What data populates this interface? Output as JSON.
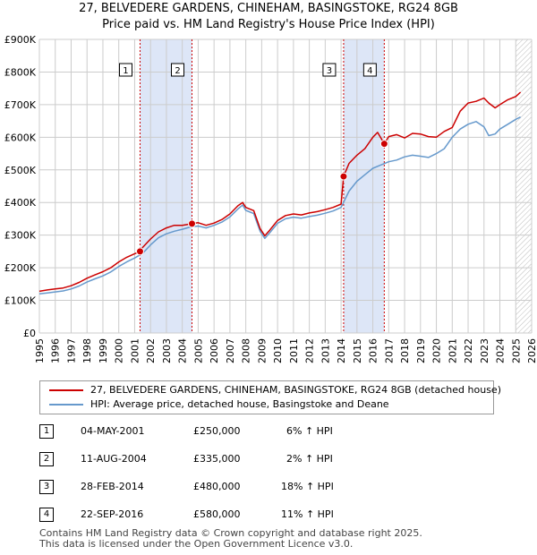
{
  "header": {
    "title_line1": "27, BELVEDERE GARDENS, CHINEHAM, BASINGSTOKE, RG24 8GB",
    "title_line2": "Price paid vs. HM Land Registry's House Price Index (HPI)"
  },
  "colors": {
    "property": "#cc0000",
    "hpi": "#6699cc",
    "shade": "#dde6f7",
    "grid": "#cccccc",
    "marker_line": "#cc0000"
  },
  "chart_data": {
    "type": "line",
    "title": "27, BELVEDERE GARDENS, CHINEHAM, BASINGSTOKE, RG24 8GB — Price paid vs. HM Land Registry's House Price Index (HPI)",
    "xlabel": "",
    "ylabel": "",
    "xlim": [
      1995,
      2026
    ],
    "ylim": [
      0,
      900000
    ],
    "y_ticks": [
      0,
      100000,
      200000,
      300000,
      400000,
      500000,
      600000,
      700000,
      800000,
      900000
    ],
    "y_tick_labels": [
      "£0",
      "£100K",
      "£200K",
      "£300K",
      "£400K",
      "£500K",
      "£600K",
      "£700K",
      "£800K",
      "£900K"
    ],
    "x_ticks": [
      1995,
      1996,
      1997,
      1998,
      1999,
      2000,
      2001,
      2002,
      2003,
      2004,
      2005,
      2006,
      2007,
      2008,
      2009,
      2010,
      2011,
      2012,
      2013,
      2014,
      2015,
      2016,
      2017,
      2018,
      2019,
      2020,
      2021,
      2022,
      2023,
      2024,
      2025,
      2026
    ],
    "x_tick_labels": [
      "1995",
      "1996",
      "1997",
      "1998",
      "1999",
      "2000",
      "2001",
      "2002",
      "2003",
      "2004",
      "2005",
      "2006",
      "2007",
      "2008",
      "2009",
      "2010",
      "2011",
      "2012",
      "2013",
      "2014",
      "2015",
      "2016",
      "2017",
      "2018",
      "2019",
      "2020",
      "2021",
      "2022",
      "2023",
      "2024",
      "2025",
      "2026"
    ],
    "shaded_ranges": [
      [
        2001.34,
        2004.61
      ],
      [
        2014.16,
        2016.72
      ]
    ],
    "hatched_from": 2025.0,
    "series": [
      {
        "name": "27, BELVEDERE GARDENS, CHINEHAM, BASINGSTOKE, RG24 8GB (detached house)",
        "color": "#cc0000",
        "x": [
          1995,
          1995.5,
          1996,
          1996.5,
          1997,
          1997.5,
          1998,
          1998.5,
          1999,
          1999.5,
          2000,
          2000.5,
          2001,
          2001.34,
          2001.5,
          2002,
          2002.5,
          2003,
          2003.5,
          2004,
          2004.61,
          2005,
          2005.5,
          2006,
          2006.5,
          2007,
          2007.5,
          2007.8,
          2008,
          2008.5,
          2008.9,
          2009.2,
          2009.5,
          2010,
          2010.5,
          2011,
          2011.5,
          2012,
          2012.5,
          2013,
          2013.5,
          2014,
          2014.16,
          2014.5,
          2015,
          2015.5,
          2016,
          2016.3,
          2016.72,
          2017,
          2017.5,
          2018,
          2018.5,
          2019,
          2019.5,
          2020,
          2020.5,
          2021,
          2021.5,
          2022,
          2022.5,
          2023,
          2023.3,
          2023.7,
          2024,
          2024.5,
          2025,
          2025.3
        ],
        "values": [
          128000,
          132000,
          135000,
          138000,
          145000,
          155000,
          168000,
          178000,
          188000,
          200000,
          218000,
          232000,
          243000,
          250000,
          262000,
          288000,
          310000,
          322000,
          330000,
          330000,
          335000,
          338000,
          330000,
          337000,
          348000,
          365000,
          390000,
          400000,
          385000,
          375000,
          320000,
          298000,
          315000,
          345000,
          360000,
          365000,
          362000,
          368000,
          372000,
          378000,
          385000,
          395000,
          480000,
          520000,
          545000,
          565000,
          600000,
          615000,
          580000,
          602000,
          608000,
          598000,
          612000,
          610000,
          602000,
          600000,
          618000,
          630000,
          680000,
          705000,
          710000,
          720000,
          705000,
          690000,
          700000,
          715000,
          725000,
          738000
        ]
      },
      {
        "name": "HPI: Average price, detached house, Basingstoke and Deane",
        "color": "#6699cc",
        "x": [
          1995,
          1995.5,
          1996,
          1996.5,
          1997,
          1997.5,
          1998,
          1998.5,
          1999,
          1999.5,
          2000,
          2000.5,
          2001,
          2001.5,
          2002,
          2002.5,
          2003,
          2003.5,
          2004,
          2004.5,
          2005,
          2005.5,
          2006,
          2006.5,
          2007,
          2007.5,
          2007.8,
          2008,
          2008.5,
          2008.9,
          2009.2,
          2009.5,
          2010,
          2010.5,
          2011,
          2011.5,
          2012,
          2012.5,
          2013,
          2013.5,
          2014,
          2014.5,
          2015,
          2015.5,
          2016,
          2016.5,
          2017,
          2017.5,
          2018,
          2018.5,
          2019,
          2019.5,
          2020,
          2020.5,
          2021,
          2021.5,
          2022,
          2022.5,
          2023,
          2023.3,
          2023.7,
          2024,
          2024.5,
          2025,
          2025.3
        ],
        "values": [
          120000,
          123000,
          126000,
          129000,
          135000,
          144000,
          156000,
          166000,
          175000,
          187000,
          204000,
          218000,
          230000,
          244000,
          270000,
          292000,
          304000,
          312000,
          318000,
          325000,
          328000,
          322000,
          330000,
          340000,
          356000,
          380000,
          392000,
          376000,
          366000,
          312000,
          290000,
          307000,
          336000,
          350000,
          355000,
          352000,
          357000,
          361000,
          367000,
          374000,
          385000,
          435000,
          465000,
          485000,
          505000,
          515000,
          525000,
          530000,
          540000,
          545000,
          542000,
          538000,
          550000,
          565000,
          600000,
          625000,
          640000,
          648000,
          632000,
          605000,
          610000,
          625000,
          640000,
          655000,
          662000
        ]
      }
    ],
    "transactions": [
      {
        "num": "1",
        "date": "04-MAY-2001",
        "x": 2001.34,
        "price": 250000,
        "price_label": "£250,000",
        "pct": "6% ↑ HPI"
      },
      {
        "num": "2",
        "date": "11-AUG-2004",
        "x": 2004.61,
        "price": 335000,
        "price_label": "£335,000",
        "pct": "2% ↑ HPI"
      },
      {
        "num": "3",
        "date": "28-FEB-2014",
        "x": 2014.16,
        "price": 480000,
        "price_label": "£480,000",
        "pct": "18% ↑ HPI"
      },
      {
        "num": "4",
        "date": "22-SEP-2016",
        "x": 2016.72,
        "price": 580000,
        "price_label": "£580,000",
        "pct": "11% ↑ HPI"
      }
    ]
  },
  "legend": {
    "property_label": "27, BELVEDERE GARDENS, CHINEHAM, BASINGSTOKE, RG24 8GB (detached house)",
    "hpi_label": "HPI: Average price, detached house, Basingstoke and Deane"
  },
  "footer": {
    "line1": "Contains HM Land Registry data © Crown copyright and database right 2025.",
    "line2": "This data is licensed under the Open Government Licence v3.0."
  }
}
